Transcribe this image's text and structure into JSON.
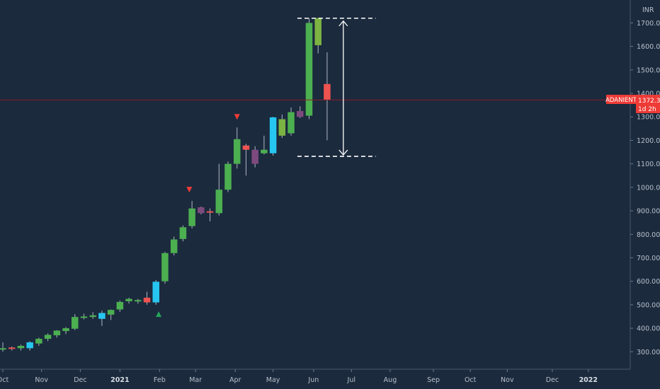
{
  "chart_data": {
    "type": "candlestick",
    "symbol": "ADANIENT",
    "currency": "INR",
    "last_price": "1372.30",
    "countdown": "1d 2h",
    "ylim": [
      230,
      1760
    ],
    "yticks": [
      300,
      400,
      500,
      600,
      700,
      800,
      900,
      1000,
      1100,
      1200,
      1300,
      1400,
      1500,
      1600,
      1700
    ],
    "ytick_labels": [
      "300.00",
      "400.00",
      "500.00",
      "600.00",
      "700.00",
      "800.00",
      "900.00",
      "1000.00",
      "1100.00",
      "1200.00",
      "1300.00",
      "1400.00",
      "1500.00",
      "1600.00",
      "1700.00"
    ],
    "xticks": [
      {
        "label": "Oct",
        "t": 0
      },
      {
        "label": "Nov",
        "t": 4.3
      },
      {
        "label": "Dec",
        "t": 8.6
      },
      {
        "label": "2021",
        "t": 13.0,
        "bold": true
      },
      {
        "label": "Feb",
        "t": 17.4
      },
      {
        "label": "Mar",
        "t": 21.4
      },
      {
        "label": "Apr",
        "t": 25.8
      },
      {
        "label": "May",
        "t": 30.0
      },
      {
        "label": "Jun",
        "t": 34.5
      },
      {
        "label": "Jul",
        "t": 38.7
      },
      {
        "label": "Aug",
        "t": 43.0
      },
      {
        "label": "Sep",
        "t": 47.8
      },
      {
        "label": "Oct",
        "t": 51.9
      },
      {
        "label": "Nov",
        "t": 56.0
      },
      {
        "label": "Dec",
        "t": 61.0
      },
      {
        "label": "2022",
        "t": 65.0,
        "bold": true
      }
    ],
    "colors": {
      "up": "#4caf50",
      "down": "#ef5350",
      "cyan": "#26c6f0",
      "purple": "#7e4a7e",
      "olive": "#7cb342",
      "wick": "#b0b8c4",
      "price_line": "#8b1e2a",
      "label_bg": "#ef3b36"
    },
    "candles": [
      {
        "t": 0,
        "o": 310,
        "h": 340,
        "l": 300,
        "c": 315,
        "color": "up"
      },
      {
        "t": 1,
        "o": 312,
        "h": 322,
        "l": 305,
        "c": 318,
        "color": "down"
      },
      {
        "t": 2,
        "o": 315,
        "h": 330,
        "l": 305,
        "c": 325,
        "color": "up"
      },
      {
        "t": 3,
        "o": 315,
        "h": 345,
        "l": 305,
        "c": 340,
        "color": "cyan"
      },
      {
        "t": 4,
        "o": 335,
        "h": 360,
        "l": 325,
        "c": 355,
        "color": "up"
      },
      {
        "t": 5,
        "o": 355,
        "h": 378,
        "l": 345,
        "c": 372,
        "color": "up"
      },
      {
        "t": 6,
        "o": 370,
        "h": 392,
        "l": 360,
        "c": 390,
        "color": "up"
      },
      {
        "t": 7,
        "o": 388,
        "h": 405,
        "l": 375,
        "c": 400,
        "color": "up"
      },
      {
        "t": 8,
        "o": 398,
        "h": 460,
        "l": 392,
        "c": 448,
        "color": "up"
      },
      {
        "t": 9,
        "o": 445,
        "h": 462,
        "l": 438,
        "c": 450,
        "color": "up"
      },
      {
        "t": 10,
        "o": 448,
        "h": 468,
        "l": 440,
        "c": 455,
        "color": "up"
      },
      {
        "t": 11,
        "o": 440,
        "h": 475,
        "l": 410,
        "c": 465,
        "color": "cyan"
      },
      {
        "t": 12,
        "o": 458,
        "h": 480,
        "l": 435,
        "c": 478,
        "color": "up"
      },
      {
        "t": 13,
        "o": 480,
        "h": 518,
        "l": 470,
        "c": 512,
        "color": "up"
      },
      {
        "t": 14,
        "o": 515,
        "h": 530,
        "l": 505,
        "c": 525,
        "color": "up"
      },
      {
        "t": 15,
        "o": 520,
        "h": 525,
        "l": 505,
        "c": 519,
        "color": "up"
      },
      {
        "t": 16,
        "o": 530,
        "h": 555,
        "l": 500,
        "c": 510,
        "color": "down"
      },
      {
        "t": 17,
        "o": 510,
        "h": 605,
        "l": 500,
        "c": 598,
        "color": "cyan"
      },
      {
        "t": 18,
        "o": 600,
        "h": 725,
        "l": 590,
        "c": 720,
        "color": "up"
      },
      {
        "t": 19,
        "o": 720,
        "h": 790,
        "l": 710,
        "c": 778,
        "color": "up"
      },
      {
        "t": 20,
        "o": 780,
        "h": 838,
        "l": 770,
        "c": 830,
        "color": "up"
      },
      {
        "t": 21,
        "o": 835,
        "h": 942,
        "l": 825,
        "c": 910,
        "color": "up"
      },
      {
        "t": 22,
        "o": 915,
        "h": 918,
        "l": 885,
        "c": 890,
        "color": "purple"
      },
      {
        "t": 23,
        "o": 892,
        "h": 910,
        "l": 855,
        "c": 898,
        "color": "down"
      },
      {
        "t": 24,
        "o": 890,
        "h": 1100,
        "l": 880,
        "c": 990,
        "color": "up"
      },
      {
        "t": 25,
        "o": 990,
        "h": 1110,
        "l": 980,
        "c": 1100,
        "color": "up"
      },
      {
        "t": 26,
        "o": 1100,
        "h": 1255,
        "l": 1080,
        "c": 1205,
        "color": "up"
      },
      {
        "t": 27,
        "o": 1178,
        "h": 1185,
        "l": 1050,
        "c": 1160,
        "color": "down"
      },
      {
        "t": 28,
        "o": 1160,
        "h": 1175,
        "l": 1085,
        "c": 1100,
        "color": "purple"
      },
      {
        "t": 29,
        "o": 1145,
        "h": 1220,
        "l": 1140,
        "c": 1160,
        "color": "up"
      },
      {
        "t": 30,
        "o": 1145,
        "h": 1300,
        "l": 1135,
        "c": 1298,
        "color": "cyan"
      },
      {
        "t": 31,
        "o": 1220,
        "h": 1310,
        "l": 1210,
        "c": 1290,
        "color": "olive"
      },
      {
        "t": 32,
        "o": 1230,
        "h": 1340,
        "l": 1220,
        "c": 1320,
        "color": "up"
      },
      {
        "t": 33,
        "o": 1300,
        "h": 1345,
        "l": 1295,
        "c": 1325,
        "color": "purple"
      },
      {
        "t": 34,
        "o": 1305,
        "h": 1720,
        "l": 1290,
        "c": 1700,
        "color": "up"
      },
      {
        "t": 35,
        "o": 1720,
        "h": 1722,
        "l": 1570,
        "c": 1605,
        "color": "olive"
      },
      {
        "t": 36,
        "o": 1440,
        "h": 1575,
        "l": 1200,
        "c": 1372.3,
        "color": "down"
      }
    ],
    "markers": [
      {
        "t": 17.3,
        "v": 460,
        "dir": "up",
        "color": "#26a65b"
      },
      {
        "t": 20.7,
        "v": 990,
        "dir": "down",
        "color": "#ef3b36"
      },
      {
        "t": 26.0,
        "v": 1300,
        "dir": "down",
        "color": "#ef3b36"
      }
    ],
    "hlines": [
      1720,
      1132
    ],
    "hline_range_t": [
      32.7,
      41.4
    ],
    "range_arrow": {
      "t": 37.8,
      "from": 1708,
      "to": 1138
    }
  }
}
